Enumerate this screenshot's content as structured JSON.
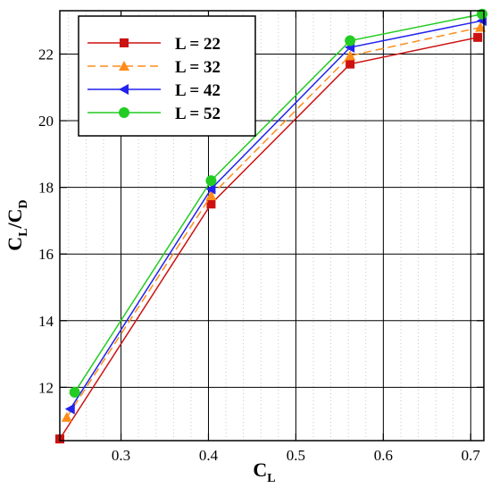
{
  "chart_data": {
    "type": "line",
    "title": "",
    "xlabel": {
      "main": "C",
      "sub": "L"
    },
    "ylabel": {
      "main1": "C",
      "sub1": "L",
      "sep": "/",
      "main2": "C",
      "sub2": "D"
    },
    "xlim": [
      0.23,
      0.715
    ],
    "ylim": [
      10.4,
      23.3
    ],
    "xticks": [
      0.3,
      0.4,
      0.5,
      0.6,
      0.7
    ],
    "yticks": [
      12,
      14,
      16,
      18,
      20,
      22
    ],
    "xtick_labels": [
      "0.3",
      "0.4",
      "0.5",
      "0.6",
      "0.7"
    ],
    "ytick_labels": [
      "12",
      "14",
      "16",
      "18",
      "20",
      "22"
    ],
    "minor_grid_x_step": 0.02,
    "grid": true,
    "legend_position": "top-left",
    "series": [
      {
        "name": "L = 22",
        "color": "#cc1111",
        "marker": "square",
        "dash": "none",
        "x": [
          0.23,
          0.403,
          0.562,
          0.708
        ],
        "y": [
          10.45,
          17.5,
          21.7,
          22.5
        ]
      },
      {
        "name": "L = 32",
        "color": "#ff8c1a",
        "marker": "triangle-up",
        "dash": "dashed",
        "x": [
          0.238,
          0.403,
          0.562,
          0.711
        ],
        "y": [
          11.1,
          17.75,
          21.95,
          22.8
        ]
      },
      {
        "name": "L = 42",
        "color": "#2222ee",
        "marker": "triangle-left",
        "dash": "none",
        "x": [
          0.242,
          0.403,
          0.562,
          0.713
        ],
        "y": [
          11.35,
          17.95,
          22.2,
          23.0
        ]
      },
      {
        "name": "L = 52",
        "color": "#22cc22",
        "marker": "circle",
        "dash": "none",
        "x": [
          0.247,
          0.403,
          0.562,
          0.713
        ],
        "y": [
          11.85,
          18.2,
          22.4,
          23.2
        ]
      }
    ]
  }
}
